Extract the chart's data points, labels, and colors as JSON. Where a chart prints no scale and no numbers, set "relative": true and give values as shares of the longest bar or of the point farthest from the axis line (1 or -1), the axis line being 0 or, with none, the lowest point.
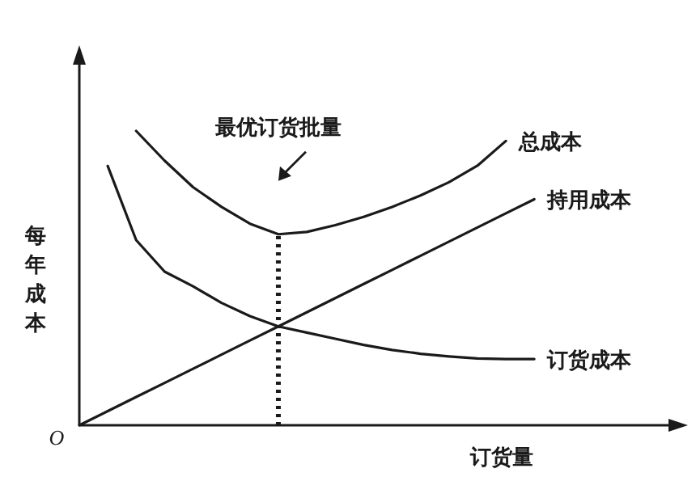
{
  "chart_data": {
    "type": "line",
    "relative": true,
    "xlabel": "订货量",
    "ylabel": "每年成本",
    "marker": "none",
    "line_style": "solid",
    "categories": [
      null,
      null,
      null,
      null,
      null,
      null,
      null,
      null,
      null,
      null,
      null,
      null,
      null,
      null,
      null,
      null,
      null
    ],
    "series": [
      {
        "name": "总成本",
        "color": "#1a1a1a",
        "values": [
          null,
          null,
          1.0,
          0.899,
          0.809,
          0.742,
          0.685,
          0.649,
          0.657,
          0.68,
          0.708,
          0.742,
          0.781,
          0.826,
          0.882,
          0.966,
          null
        ]
      },
      {
        "name": "持用成本",
        "color": "#1a1a1a",
        "values": [
          0,
          0.048,
          0.096,
          0.144,
          0.192,
          0.24,
          0.288,
          0.336,
          0.384,
          0.432,
          0.48,
          0.528,
          0.576,
          0.624,
          0.672,
          0.72,
          0.768
        ]
      },
      {
        "name": "订货成本",
        "color": "#1a1a1a",
        "values": [
          null,
          0.881,
          0.629,
          0.522,
          0.472,
          0.416,
          0.371,
          0.336,
          0.315,
          0.294,
          0.273,
          0.256,
          0.243,
          0.234,
          0.227,
          0.225,
          0.225
        ]
      }
    ],
    "annotations": [
      "最优订货批量",
      "O"
    ]
  }
}
